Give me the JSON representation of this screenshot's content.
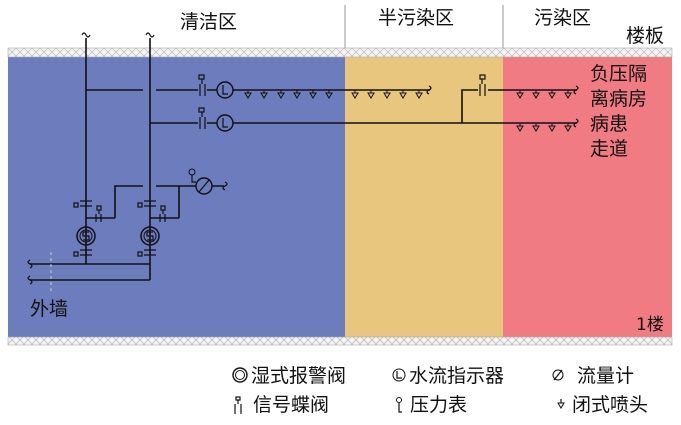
{
  "zones": {
    "clean": "清洁区",
    "semi_contaminated": "半污染区",
    "contaminated": "污染区"
  },
  "labels": {
    "floor_slab": "楼板",
    "room_line1": "负压隔",
    "room_line2": "离病房",
    "corridor_line1": "病患",
    "corridor_line2": "走道",
    "outer_wall": "外墙",
    "floor": "1楼"
  },
  "legend": {
    "wet_alarm_valve": "湿式报警阀",
    "water_flow_indicator": "水流指示器",
    "flow_meter": "流量计",
    "signal_butterfly_valve": "信号蝶阀",
    "pressure_gauge": "压力表",
    "closed_sprinkler": "闭式喷头"
  },
  "colors": {
    "clean": "#6c7cbc",
    "semi_contaminated": "#e8c67e",
    "contaminated": "#f07b82"
  }
}
